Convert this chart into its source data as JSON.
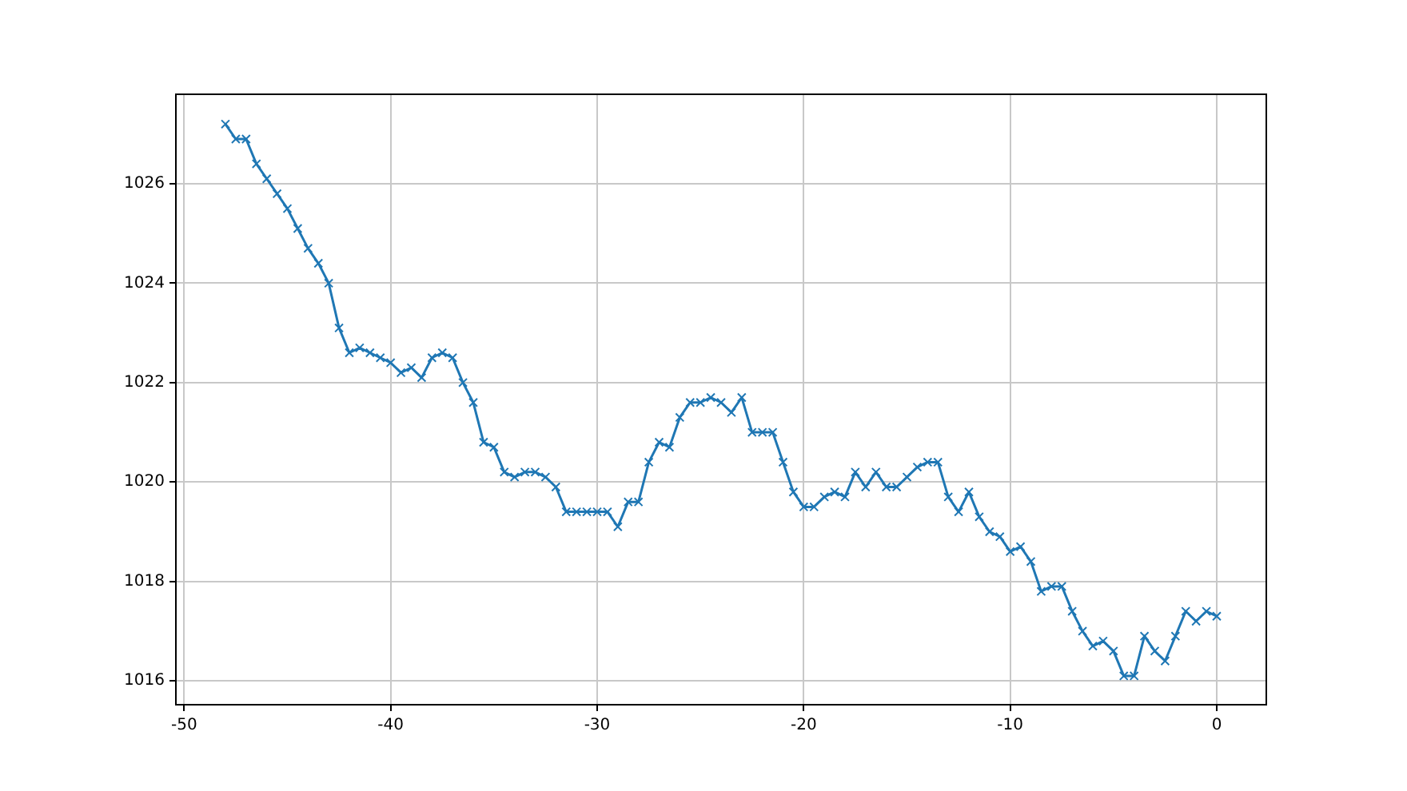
{
  "chart_data": {
    "type": "line",
    "x": [
      -48,
      -47.5,
      -47,
      -46.5,
      -46,
      -45.5,
      -45,
      -44.5,
      -44,
      -43.5,
      -43,
      -42.5,
      -42,
      -41.5,
      -41,
      -40.5,
      -40,
      -39.5,
      -39,
      -38.5,
      -38,
      -37.5,
      -37,
      -36.5,
      -36,
      -35.5,
      -35,
      -34.5,
      -34,
      -33.5,
      -33,
      -32.5,
      -32,
      -31.5,
      -31,
      -30.5,
      -30,
      -29.5,
      -29,
      -28.5,
      -28,
      -27.5,
      -27,
      -26.5,
      -26,
      -25.5,
      -25,
      -24.5,
      -24,
      -23.5,
      -23,
      -22.5,
      -22,
      -21.5,
      -21,
      -20.5,
      -20,
      -19.5,
      -19,
      -18.5,
      -18,
      -17.5,
      -17,
      -16.5,
      -16,
      -15.5,
      -15,
      -14.5,
      -14,
      -13.5,
      -13,
      -12.5,
      -12,
      -11.5,
      -11,
      -10.5,
      -10,
      -9.5,
      -9,
      -8.5,
      -8,
      -7.5,
      -7,
      -6.5,
      -6,
      -5.5,
      -5,
      -4.5,
      -4,
      -3.5,
      -3,
      -2.5,
      -2,
      -1.5,
      -1,
      -0.5,
      0
    ],
    "series": [
      {
        "color": "#1f77b4",
        "values": [
          1027.2,
          1026.9,
          1026.9,
          1026.4,
          1026.1,
          1025.8,
          1025.5,
          1025.1,
          1024.7,
          1024.4,
          1024.0,
          1023.1,
          1022.6,
          1022.7,
          1022.6,
          1022.5,
          1022.4,
          1022.2,
          1022.3,
          1022.1,
          1022.5,
          1022.6,
          1022.5,
          1022.0,
          1021.6,
          1020.8,
          1020.7,
          1020.2,
          1020.1,
          1020.2,
          1020.2,
          1020.1,
          1019.9,
          1019.4,
          1019.4,
          1019.4,
          1019.4,
          1019.4,
          1019.1,
          1019.6,
          1019.6,
          1020.4,
          1020.8,
          1020.7,
          1021.3,
          1021.6,
          1021.6,
          1021.7,
          1021.6,
          1021.4,
          1021.7,
          1021.0,
          1021.0,
          1021.0,
          1020.4,
          1019.8,
          1019.5,
          1019.5,
          1019.7,
          1019.8,
          1019.7,
          1020.2,
          1019.9,
          1020.2,
          1019.9,
          1019.9,
          1020.1,
          1020.3,
          1020.4,
          1020.4,
          1019.7,
          1019.4,
          1019.8,
          1019.3,
          1019.0,
          1018.9,
          1018.6,
          1018.7,
          1018.4,
          1017.8,
          1017.9,
          1017.9,
          1017.4,
          1017.0,
          1016.7,
          1016.8,
          1016.6,
          1016.1,
          1016.1,
          1016.9,
          1016.6,
          1016.4,
          1016.9,
          1017.4,
          1017.2,
          1017.4,
          1017.3
        ]
      }
    ],
    "xlim": [
      -50.4,
      2.4
    ],
    "xticks": [
      -50,
      -40,
      -30,
      -20,
      -10,
      0
    ],
    "ylim": [
      1015.52,
      1027.8
    ],
    "yticks": [
      1016,
      1018,
      1020,
      1022,
      1024,
      1026
    ],
    "grid": true,
    "marker": "cross",
    "line_style": "solid",
    "legend": false
  }
}
